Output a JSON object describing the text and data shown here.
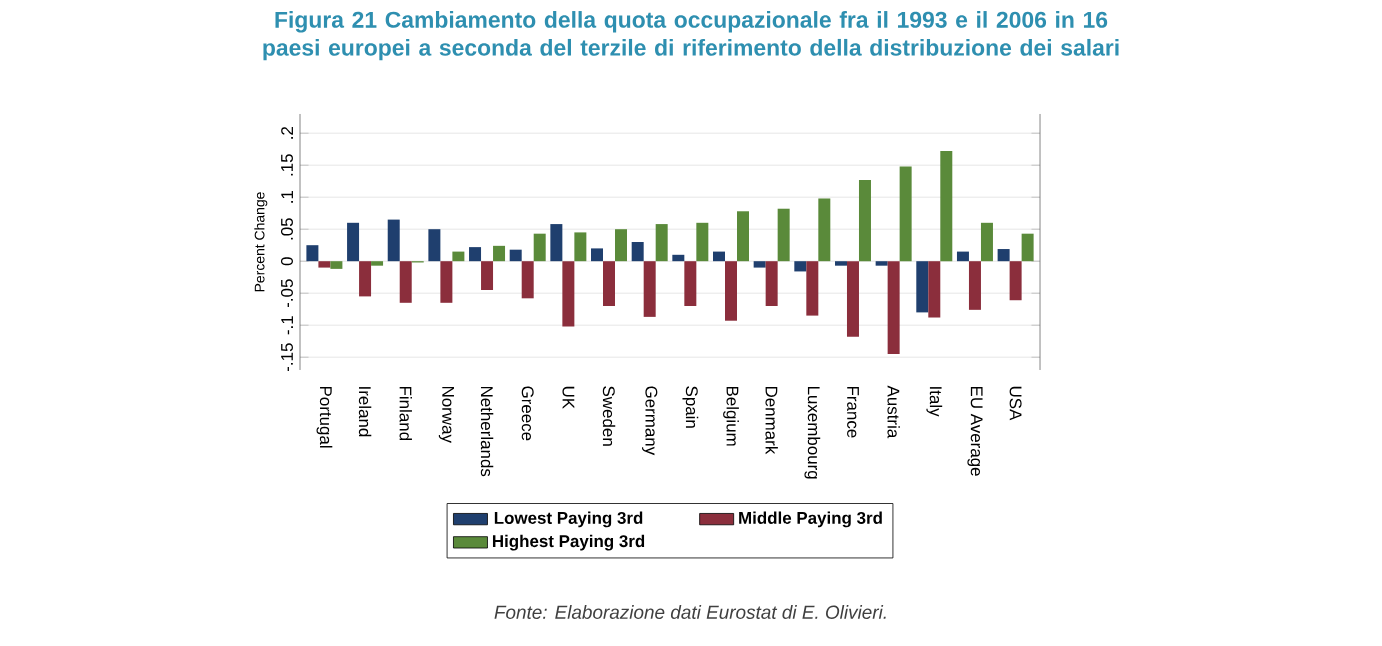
{
  "chart_data": {
    "type": "bar",
    "title": "Figura 21 Cambiamento della quota occupazionale fra il 1993 e il 2006 in 16 paesi europei a seconda del terzile di riferimento della distribuzione dei salari",
    "categories": [
      "Portugal",
      "Ireland",
      "Finland",
      "Norway",
      "Netherlands",
      "Greece",
      "UK",
      "Sweden",
      "Germany",
      "Spain",
      "Belgium",
      "Denmark",
      "Luxembourg",
      "France",
      "Austria",
      "Italy",
      "EU Average",
      "USA"
    ],
    "series": [
      {
        "name": "Lowest Paying 3rd",
        "color": "#1f3f6e",
        "values": [
          0.025,
          0.06,
          0.065,
          0.05,
          0.022,
          0.018,
          0.058,
          0.02,
          0.03,
          0.01,
          0.015,
          -0.01,
          -0.016,
          -0.007,
          -0.007,
          -0.08,
          0.015,
          0.019
        ]
      },
      {
        "name": "Middle Paying 3rd",
        "color": "#8b2e3c",
        "values": [
          -0.01,
          -0.055,
          -0.065,
          -0.065,
          -0.045,
          -0.058,
          -0.102,
          -0.07,
          -0.087,
          -0.07,
          -0.093,
          -0.07,
          -0.085,
          -0.118,
          -0.145,
          -0.088,
          -0.076,
          -0.061
        ]
      },
      {
        "name": "Highest Paying 3rd",
        "color": "#5a8a3a",
        "values": [
          -0.012,
          -0.007,
          -0.002,
          0.015,
          0.024,
          0.043,
          0.045,
          0.05,
          0.058,
          0.06,
          0.078,
          0.082,
          0.098,
          0.127,
          0.148,
          0.172,
          0.06,
          0.043
        ]
      }
    ],
    "ylabel": "Percent Change",
    "ylim": [
      -0.17,
      0.23
    ],
    "yticks": [
      {
        "value": -0.15,
        "label": "-.15"
      },
      {
        "value": -0.1,
        "label": "-.1"
      },
      {
        "value": -0.05,
        "label": "-.05"
      },
      {
        "value": 0,
        "label": "0"
      },
      {
        "value": 0.05,
        "label": ".05"
      },
      {
        "value": 0.1,
        "label": ".1"
      },
      {
        "value": 0.15,
        "label": ".15"
      },
      {
        "value": 0.2,
        "label": ".2"
      }
    ],
    "grid": "y",
    "legend": "bottom",
    "annotations": [
      "Fonte: Elaborazione dati Eurostat di E. Olivieri."
    ]
  }
}
